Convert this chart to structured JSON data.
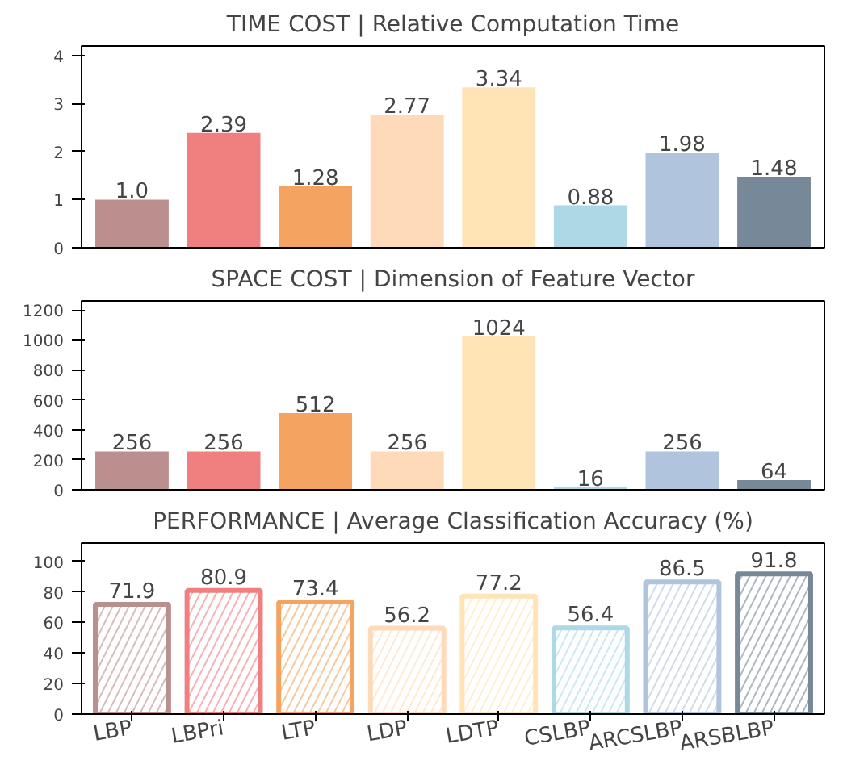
{
  "chart_data": [
    {
      "type": "bar",
      "title": "TIME COST | Relative Computation Time",
      "categories": [
        null,
        null,
        null,
        null,
        null,
        null,
        null,
        null
      ],
      "values": [
        1.0,
        2.39,
        1.28,
        2.77,
        3.34,
        0.88,
        1.98,
        1.48
      ],
      "value_labels": [
        "1.0",
        "2.39",
        "1.28",
        "2.77",
        "3.34",
        "0.88",
        "1.98",
        "1.48"
      ],
      "colors": [
        "#bc8f8f",
        "#f08080",
        "#f4a460",
        "#ffdab9",
        "#ffe4b5",
        "#add8e6",
        "#b0c4de",
        "#778899"
      ],
      "ylim": [
        0,
        4.2
      ],
      "yticks": [
        0,
        1,
        2,
        3,
        4
      ],
      "tick_labels": "y"
    },
    {
      "type": "bar",
      "title": "SPACE COST | Dimension of Feature Vector",
      "categories": [
        null,
        null,
        null,
        null,
        null,
        null,
        null,
        null
      ],
      "values": [
        256,
        256,
        512,
        256,
        1024,
        16,
        256,
        64
      ],
      "data_labels": true,
      "colors": [
        "#bc8f8f",
        "#f08080",
        "#f4a460",
        "#ffdab9",
        "#ffe4b5",
        "#add8e6",
        "#b0c4de",
        "#778899"
      ],
      "ylim": [
        0,
        1260
      ],
      "yticks": [
        0,
        200,
        400,
        600,
        800,
        1000,
        1200
      ],
      "tick_labels": "y"
    },
    {
      "type": "bar",
      "title": "PERFORMANCE | Average Classification Accuracy (%)",
      "categories": [
        "LBP",
        "LBPri",
        "LTP",
        "LDP",
        "LDTP",
        "CSLBP",
        "ARCSLBP",
        "ARSBLBP"
      ],
      "values": [
        71.9,
        80.9,
        73.4,
        56.2,
        77.2,
        56.4,
        86.5,
        91.8
      ],
      "data_labels": true,
      "colors": [
        "#bc8f8f",
        "#f08080",
        "#f4a460",
        "#ffdab9",
        "#ffe4b5",
        "#add8e6",
        "#b0c4de",
        "#778899"
      ],
      "ylim": [
        0,
        112
      ],
      "yticks": [
        0,
        20,
        40,
        60,
        80,
        100
      ]
    }
  ]
}
